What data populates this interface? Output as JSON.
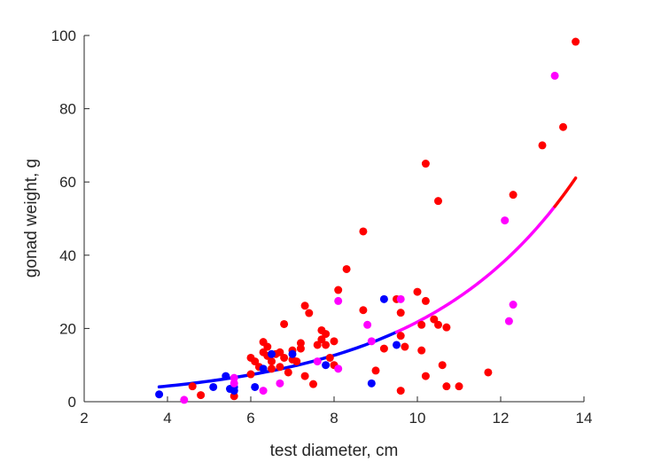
{
  "chart_data": {
    "type": "scatter",
    "title": "",
    "xlabel": "test diameter, cm",
    "ylabel": "gonad weight, g",
    "xlim": [
      2,
      14
    ],
    "ylim": [
      0,
      100
    ],
    "xticks": [
      2,
      4,
      6,
      8,
      10,
      12,
      14
    ],
    "yticks": [
      0,
      20,
      40,
      60,
      80,
      100
    ],
    "grid": false,
    "colors": {
      "red_points": "#ff0000",
      "blue_points": "#0000ff",
      "magenta_points": "#ff00ff",
      "axis": "#262626"
    },
    "series": [
      {
        "color": "#ff0000",
        "points": [
          [
            4.6,
            4.2
          ],
          [
            4.8,
            1.8
          ],
          [
            5.6,
            1.5
          ],
          [
            6.0,
            12.0
          ],
          [
            6.0,
            7.5
          ],
          [
            6.1,
            11.0
          ],
          [
            6.2,
            9.5
          ],
          [
            6.3,
            16.3
          ],
          [
            6.3,
            13.5
          ],
          [
            6.4,
            15.0
          ],
          [
            6.4,
            12.5
          ],
          [
            6.5,
            11.0
          ],
          [
            6.5,
            9.0
          ],
          [
            6.6,
            13.0
          ],
          [
            6.7,
            9.5
          ],
          [
            6.7,
            13.5
          ],
          [
            6.8,
            21.2
          ],
          [
            6.8,
            12.0
          ],
          [
            6.9,
            8.0
          ],
          [
            7.0,
            14.0
          ],
          [
            7.0,
            11.5
          ],
          [
            7.1,
            11.0
          ],
          [
            7.2,
            14.5
          ],
          [
            7.2,
            16.0
          ],
          [
            7.3,
            26.2
          ],
          [
            7.3,
            7.0
          ],
          [
            7.4,
            24.2
          ],
          [
            7.5,
            4.8
          ],
          [
            7.6,
            15.5
          ],
          [
            7.7,
            19.5
          ],
          [
            7.7,
            17.0
          ],
          [
            7.8,
            18.5
          ],
          [
            7.8,
            15.5
          ],
          [
            7.9,
            12.0
          ],
          [
            8.0,
            16.5
          ],
          [
            8.0,
            10.0
          ],
          [
            8.1,
            30.5
          ],
          [
            8.3,
            36.2
          ],
          [
            8.7,
            46.5
          ],
          [
            8.7,
            25.0
          ],
          [
            9.0,
            8.5
          ],
          [
            9.2,
            14.5
          ],
          [
            9.5,
            28.0
          ],
          [
            9.6,
            24.3
          ],
          [
            9.6,
            18.0
          ],
          [
            9.6,
            3.0
          ],
          [
            9.7,
            15.0
          ],
          [
            10.0,
            30.0
          ],
          [
            10.1,
            21.0
          ],
          [
            10.1,
            14.0
          ],
          [
            10.2,
            65.0
          ],
          [
            10.2,
            27.5
          ],
          [
            10.2,
            7.0
          ],
          [
            10.4,
            22.5
          ],
          [
            10.5,
            54.8
          ],
          [
            10.5,
            21.0
          ],
          [
            10.6,
            10.0
          ],
          [
            10.7,
            20.3
          ],
          [
            10.7,
            4.2
          ],
          [
            11.0,
            4.2
          ],
          [
            11.7,
            8.0
          ],
          [
            12.3,
            56.5
          ],
          [
            13.0,
            70.0
          ],
          [
            13.5,
            75.0
          ],
          [
            13.8,
            98.3
          ]
        ]
      },
      {
        "color": "#0000ff",
        "points": [
          [
            3.8,
            2.0
          ],
          [
            5.1,
            4.0
          ],
          [
            5.4,
            7.0
          ],
          [
            5.5,
            3.5
          ],
          [
            5.6,
            4.0
          ],
          [
            5.6,
            3.0
          ],
          [
            6.1,
            4.0
          ],
          [
            6.3,
            9.0
          ],
          [
            6.5,
            13.0
          ],
          [
            7.0,
            13.0
          ],
          [
            7.8,
            10.0
          ],
          [
            8.9,
            5.0
          ],
          [
            9.2,
            28.0
          ],
          [
            9.5,
            15.5
          ]
        ]
      },
      {
        "color": "#ff00ff",
        "points": [
          [
            4.4,
            0.5
          ],
          [
            5.6,
            6.5
          ],
          [
            5.6,
            5.0
          ],
          [
            6.3,
            3.0
          ],
          [
            6.7,
            5.0
          ],
          [
            7.6,
            11.0
          ],
          [
            8.1,
            27.5
          ],
          [
            8.1,
            9.0
          ],
          [
            8.8,
            21.0
          ],
          [
            8.9,
            16.5
          ],
          [
            9.6,
            28.0
          ],
          [
            12.1,
            49.5
          ],
          [
            12.2,
            22.0
          ],
          [
            12.3,
            26.5
          ],
          [
            13.3,
            89.0
          ]
        ]
      }
    ],
    "fit_curve": {
      "model": "exponential",
      "a": 1.445,
      "b": 0.2713,
      "segments": [
        {
          "color": "#0000ff",
          "x_range": [
            3.8,
            9.5
          ]
        },
        {
          "color": "#ff00ff",
          "x_range": [
            9.5,
            13.3
          ]
        },
        {
          "color": "#ff0000",
          "x_range": [
            13.3,
            13.8
          ]
        }
      ]
    }
  }
}
